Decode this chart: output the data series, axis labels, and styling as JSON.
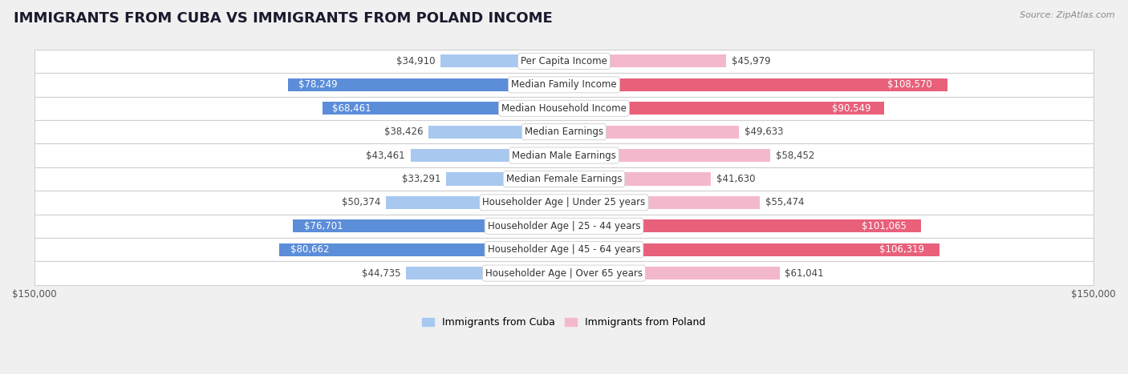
{
  "title": "IMMIGRANTS FROM CUBA VS IMMIGRANTS FROM POLAND INCOME",
  "source": "Source: ZipAtlas.com",
  "categories": [
    "Per Capita Income",
    "Median Family Income",
    "Median Household Income",
    "Median Earnings",
    "Median Male Earnings",
    "Median Female Earnings",
    "Householder Age | Under 25 years",
    "Householder Age | 25 - 44 years",
    "Householder Age | 45 - 64 years",
    "Householder Age | Over 65 years"
  ],
  "cuba_values": [
    34910,
    78249,
    68461,
    38426,
    43461,
    33291,
    50374,
    76701,
    80662,
    44735
  ],
  "poland_values": [
    45979,
    108570,
    90549,
    49633,
    58452,
    41630,
    55474,
    101065,
    106319,
    61041
  ],
  "cuba_color_light": "#a8c8f0",
  "cuba_color_dark": "#5b8dd9",
  "poland_color_light": "#f4b8cc",
  "poland_color_dark": "#e8607a",
  "bar_height": 0.55,
  "max_val": 150000,
  "bg_color": "#f0f0f0",
  "row_bg": "#ffffff",
  "row_border": "#d0d0d0",
  "label_fontsize": 8.5,
  "title_fontsize": 13,
  "source_fontsize": 8,
  "legend_fontsize": 9,
  "value_fontsize": 8.5,
  "cuba_dark_threshold": 60000,
  "poland_dark_threshold": 85000,
  "cuba_inside_threshold": 55000,
  "poland_inside_threshold": 85000
}
